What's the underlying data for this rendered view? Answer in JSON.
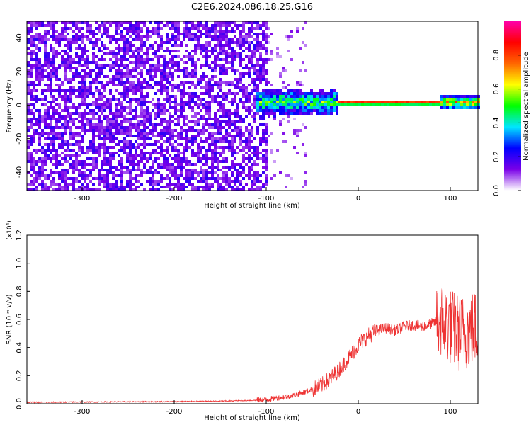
{
  "title": "C2E6.2024.086.18.25.G16",
  "chart_data": [
    {
      "type": "heatmap",
      "xlabel": "Height of straight line (km)",
      "ylabel": "Frequency (Hz)",
      "xlim": [
        -360,
        130
      ],
      "ylim": [
        -51,
        50
      ],
      "xticks": [
        -300,
        -200,
        -100,
        0,
        100
      ],
      "yticks": [
        -40,
        -20,
        0,
        20,
        40
      ],
      "colorbar": {
        "label": "Normalized spectral amplitude",
        "range": [
          0.0,
          1.0
        ],
        "ticks": [
          "0.0",
          "0.2",
          "0.4",
          "0.6",
          "0.8"
        ],
        "colors": [
          "#ffffff",
          "#7a00e8",
          "#0000ff",
          "#00e5ff",
          "#00ff00",
          "#ffff00",
          "#ff6600",
          "#ff0000",
          "#ff00aa"
        ]
      },
      "regions": {
        "noise_band_height_km": [
          -360,
          -100
        ],
        "noise_level": 0.15,
        "signal_line_height_km": [
          -110,
          130
        ],
        "signal_center_frequency_hz": 1.5,
        "signal_peak_height_km": [
          -20,
          90
        ]
      },
      "grid": false
    },
    {
      "type": "line",
      "xlabel": "Height of straight line (km)",
      "ylabel": "SNR (10 * v/v)",
      "y_multiplier": "(x10⁴)",
      "xlim": [
        -360,
        130
      ],
      "ylim": [
        0,
        1.2
      ],
      "xticks": [
        -300,
        -200,
        -100,
        0,
        100
      ],
      "yticks": [
        "0.0",
        "0.2",
        "0.4",
        "0.6",
        "0.8",
        "1.0",
        "1.2"
      ],
      "series": [
        {
          "color": "#ee3333",
          "x": [
            -360,
            -300,
            -200,
            -150,
            -110,
            -100,
            -90,
            -80,
            -70,
            -60,
            -50,
            -40,
            -30,
            -20,
            -10,
            0,
            10,
            20,
            30,
            40,
            50,
            60,
            70,
            80,
            90,
            100,
            110,
            120,
            130
          ],
          "y": [
            0.01,
            0.012,
            0.015,
            0.018,
            0.025,
            0.03,
            0.04,
            0.05,
            0.06,
            0.08,
            0.1,
            0.13,
            0.18,
            0.25,
            0.33,
            0.42,
            0.48,
            0.52,
            0.54,
            0.52,
            0.55,
            0.56,
            0.55,
            0.57,
            0.6,
            0.55,
            0.5,
            0.52,
            0.55
          ]
        }
      ],
      "grid": false
    }
  ]
}
